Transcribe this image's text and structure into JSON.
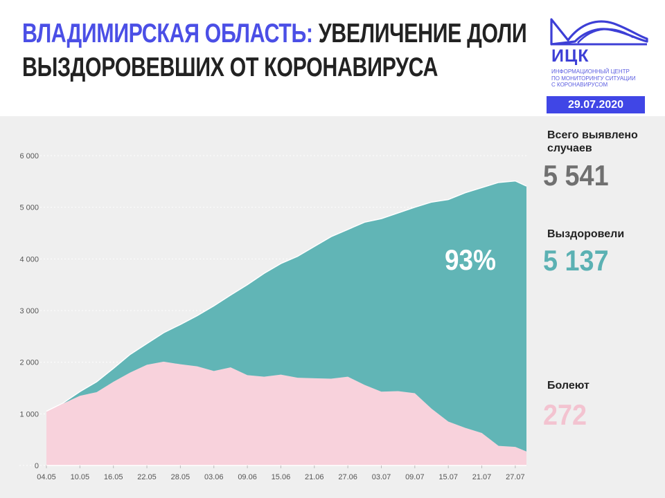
{
  "header": {
    "title_accent": "ВЛАДИМИРСКАЯ ОБЛАСТЬ:",
    "title_line1_rest": " УВЕЛИЧЕНИЕ ДОЛИ",
    "title_line2": "ВЫЗДОРОВЕВШИХ ОТ КОРОНАВИРУСА"
  },
  "logo": {
    "name": "ИЦК",
    "subtitle_lines": [
      "ИНФОРМАЦИОННЫЙ ЦЕНТР",
      "ПО МОНИТОРИНГУ СИТУАЦИИ",
      "С КОРОНАВИРУСОМ"
    ],
    "color": "#3d3fd6"
  },
  "date": "29.07.2020",
  "stats": {
    "total_label": "Всего выявлено\nслучаев",
    "total_value": "5 541",
    "recovered_label": "Выздоровели",
    "recovered_value": "5 137",
    "sick_label": "Болеют",
    "sick_value": "272",
    "share_label": "93%"
  },
  "colors": {
    "accent": "#4b4fe6",
    "recovered": "#61b5b6",
    "sick": "#f8d2dc",
    "total_text": "#707070",
    "recovered_text": "#5bb1b3",
    "sick_text": "#f3c3d0",
    "background": "#efefef"
  },
  "chart_data": {
    "type": "area",
    "stacked": true,
    "x_tick_labels": [
      "04.05",
      "10.05",
      "16.05",
      "22.05",
      "28.05",
      "03.06",
      "09.06",
      "15.06",
      "21.06",
      "27.06",
      "03.07",
      "09.07",
      "15.07",
      "21.07",
      "27.07"
    ],
    "y_ticks": [
      0,
      1000,
      2000,
      3000,
      4000,
      5000,
      6000
    ],
    "y_tick_labels": [
      "0",
      "1 000",
      "2 000",
      "3 000",
      "4 000",
      "5 000",
      "6 000"
    ],
    "ylim": [
      0,
      6000
    ],
    "grid": true,
    "x": [
      "04.05",
      "07.05",
      "10.05",
      "13.05",
      "16.05",
      "19.05",
      "22.05",
      "25.05",
      "28.05",
      "31.05",
      "03.06",
      "06.06",
      "09.06",
      "12.06",
      "15.06",
      "18.06",
      "21.06",
      "24.06",
      "27.06",
      "30.06",
      "03.07",
      "06.07",
      "09.07",
      "12.07",
      "15.07",
      "18.07",
      "21.07",
      "24.07",
      "27.07",
      "29.07"
    ],
    "series": [
      {
        "name": "Болеют",
        "color": "#f8d2dc",
        "values": [
          1050,
          1200,
          1350,
          1420,
          1620,
          1800,
          1950,
          2010,
          1960,
          1920,
          1830,
          1900,
          1750,
          1720,
          1760,
          1700,
          1690,
          1680,
          1720,
          1560,
          1430,
          1440,
          1400,
          1100,
          850,
          730,
          630,
          380,
          360,
          272
        ]
      },
      {
        "name": "Выздоровели",
        "color": "#61b5b6",
        "values": [
          0,
          10,
          80,
          200,
          260,
          350,
          410,
          560,
          770,
          980,
          1260,
          1400,
          1750,
          2000,
          2150,
          2350,
          2550,
          2750,
          2850,
          3150,
          3350,
          3450,
          3600,
          4000,
          4300,
          4550,
          4750,
          5100,
          5150,
          5137
        ]
      }
    ],
    "title": "",
    "xlabel": "",
    "ylabel": ""
  }
}
